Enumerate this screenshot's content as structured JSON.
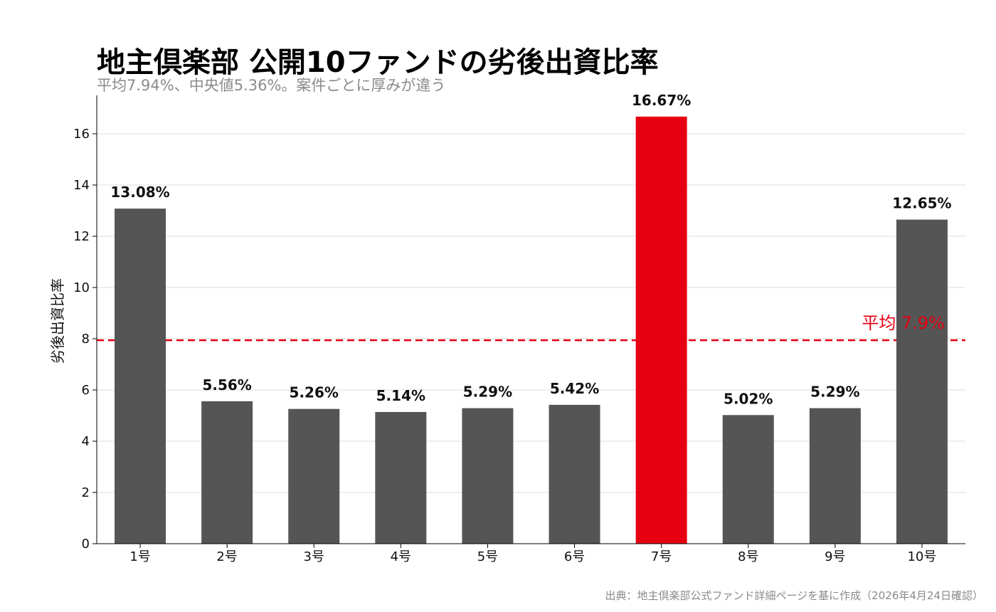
{
  "chart_data": {
    "type": "bar",
    "title": "地主倶楽部 公開10ファンドの劣後出資比率",
    "subtitle": "平均7.94%、中央値5.36%。案件ごとに厚みが違う",
    "xlabel": "",
    "ylabel": "劣後出資比率",
    "categories": [
      "1号",
      "2号",
      "3号",
      "4号",
      "5号",
      "6号",
      "7号",
      "8号",
      "9号",
      "10号"
    ],
    "values": [
      13.08,
      5.56,
      5.26,
      5.14,
      5.29,
      5.42,
      16.67,
      5.02,
      5.29,
      12.65
    ],
    "data_labels": [
      "13.08%",
      "5.56%",
      "5.26%",
      "5.14%",
      "5.29%",
      "5.42%",
      "16.67%",
      "5.02%",
      "5.29%",
      "12.65%"
    ],
    "highlight_index": 6,
    "ylim": [
      0,
      17.5
    ],
    "yticks": [
      0,
      2,
      4,
      6,
      8,
      10,
      12,
      14,
      16
    ],
    "grid": "horizontal",
    "reference_line": {
      "value": 7.94,
      "label": "平均 7.9%",
      "style": "dashed"
    },
    "colors": {
      "bar": "#555555",
      "highlight": "#e60012",
      "reference": "#e60012",
      "grid": "#dddddd",
      "axis": "#000000"
    },
    "source": "出典：地主倶楽部公式ファンド詳細ページを基に作成（2026年4月24日確認）"
  }
}
